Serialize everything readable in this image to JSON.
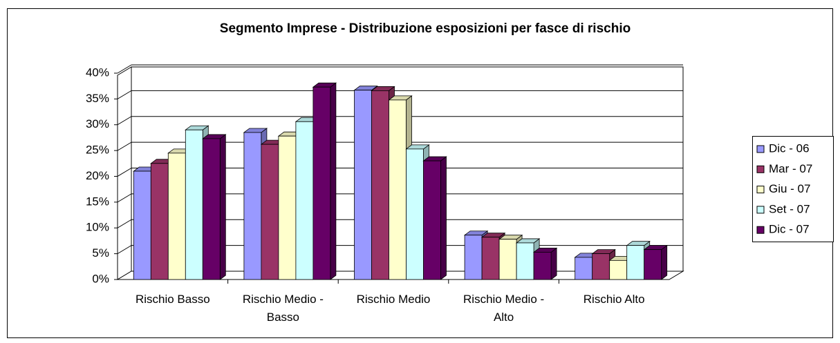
{
  "chart_data": {
    "type": "bar3d",
    "title": "Segmento Imprese - Distribuzione esposizioni per fasce di rischio",
    "categories": [
      "Rischio Basso",
      "Rischio Medio - Basso",
      "Rischio Medio",
      "Rischio Medio - Alto",
      "Rischio Alto"
    ],
    "series": [
      {
        "name": "Dic - 06",
        "color": "#9999ff",
        "values": [
          21,
          28.5,
          36.7,
          8.6,
          4.3
        ]
      },
      {
        "name": "Mar - 07",
        "color": "#993366",
        "values": [
          22.5,
          26.2,
          36.6,
          8.2,
          5
        ]
      },
      {
        "name": "Giu - 07",
        "color": "#ffffcc",
        "values": [
          24.5,
          27.8,
          34.8,
          7.8,
          3.7
        ]
      },
      {
        "name": "Set - 07",
        "color": "#ccffff",
        "values": [
          29,
          30.6,
          25.3,
          7.1,
          6.6
        ]
      },
      {
        "name": "Dic - 07",
        "color": "#660066",
        "values": [
          27.3,
          37.3,
          23,
          5.3,
          5.8
        ]
      }
    ],
    "ylim": [
      0,
      40
    ],
    "yticks": [
      {
        "value": 0,
        "label": "0%"
      },
      {
        "value": 5,
        "label": "5%"
      },
      {
        "value": 10,
        "label": "10%"
      },
      {
        "value": 15,
        "label": "15%"
      },
      {
        "value": 20,
        "label": "20%"
      },
      {
        "value": 25,
        "label": "25%"
      },
      {
        "value": 30,
        "label": "30%"
      },
      {
        "value": 35,
        "label": "35%"
      },
      {
        "value": 40,
        "label": "40%"
      }
    ],
    "grid": true,
    "legend": "right"
  }
}
